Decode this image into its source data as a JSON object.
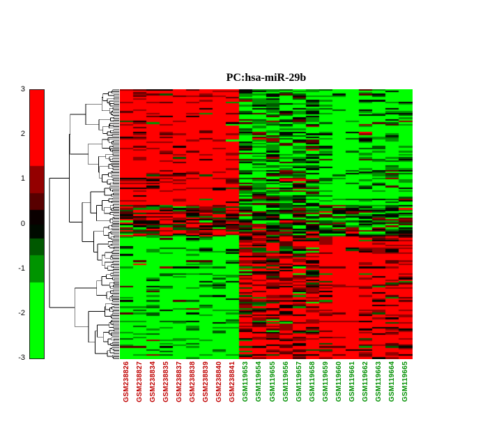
{
  "chart_data": {
    "type": "heatmap",
    "title": "PC:hsa-miR-29b",
    "colorbar": {
      "min": -3,
      "max": 3,
      "ticks": [
        3,
        2,
        1,
        0,
        -1,
        -2,
        -3
      ],
      "positive_color": "#ff0000",
      "negative_color": "#00ee00",
      "zero_color": "#000000",
      "color_levels": [
        {
          "min": 1.3,
          "c": 255
        },
        {
          "min": 0.7,
          "c": 148
        },
        {
          "min": 0.32,
          "c": 88
        },
        {
          "min": 0,
          "c": 10
        }
      ]
    },
    "columns": [
      {
        "label": "GSM238826",
        "color": "#c00000",
        "weight": 1.25
      },
      {
        "label": "GSM238827",
        "color": "#c00000",
        "weight": 1.2
      },
      {
        "label": "GSM238834",
        "color": "#c00000",
        "weight": 1.1
      },
      {
        "label": "GSM238835",
        "color": "#c00000",
        "weight": 1.15
      },
      {
        "label": "GSM238837",
        "color": "#c00000",
        "weight": 1.2
      },
      {
        "label": "GSM238838",
        "color": "#c00000",
        "weight": 1.25
      },
      {
        "label": "GSM238839",
        "color": "#c00000",
        "weight": 1.1
      },
      {
        "label": "GSM238840",
        "color": "#c00000",
        "weight": 1.2
      },
      {
        "label": "GSM238841",
        "color": "#c00000",
        "weight": 1.15
      },
      {
        "label": "GSM119653",
        "color": "#009000",
        "weight": -0.5
      },
      {
        "label": "GSM119654",
        "color": "#009000",
        "weight": -0.6
      },
      {
        "label": "GSM119655",
        "color": "#009000",
        "weight": -0.45
      },
      {
        "label": "GSM119656",
        "color": "#009000",
        "weight": -0.55
      },
      {
        "label": "GSM119657",
        "color": "#009000",
        "weight": -0.5
      },
      {
        "label": "GSM119658",
        "color": "#009000",
        "weight": -0.6
      },
      {
        "label": "GSM119659",
        "color": "#009000",
        "weight": -1.0
      },
      {
        "label": "GSM119660",
        "color": "#009000",
        "weight": -1.5
      },
      {
        "label": "GSM119661",
        "color": "#009000",
        "weight": -1.45
      },
      {
        "label": "GSM119662",
        "color": "#009000",
        "weight": -0.9
      },
      {
        "label": "GSM119663",
        "color": "#009000",
        "weight": -1.0
      },
      {
        "label": "GSM119664",
        "color": "#009000",
        "weight": -0.85
      },
      {
        "label": "GSM119665",
        "color": "#009000",
        "weight": -0.95
      }
    ],
    "n_rows": 170,
    "row_sections": [
      {
        "fraction": 0.43,
        "profile": 1.0
      },
      {
        "fraction": 0.12,
        "profile": 0.25
      },
      {
        "fraction": 0.45,
        "profile": -1.0
      }
    ],
    "value_scale": 2.2,
    "noise_sd": 1.1,
    "seed": 1337,
    "legend_position": "left",
    "grid": false
  }
}
